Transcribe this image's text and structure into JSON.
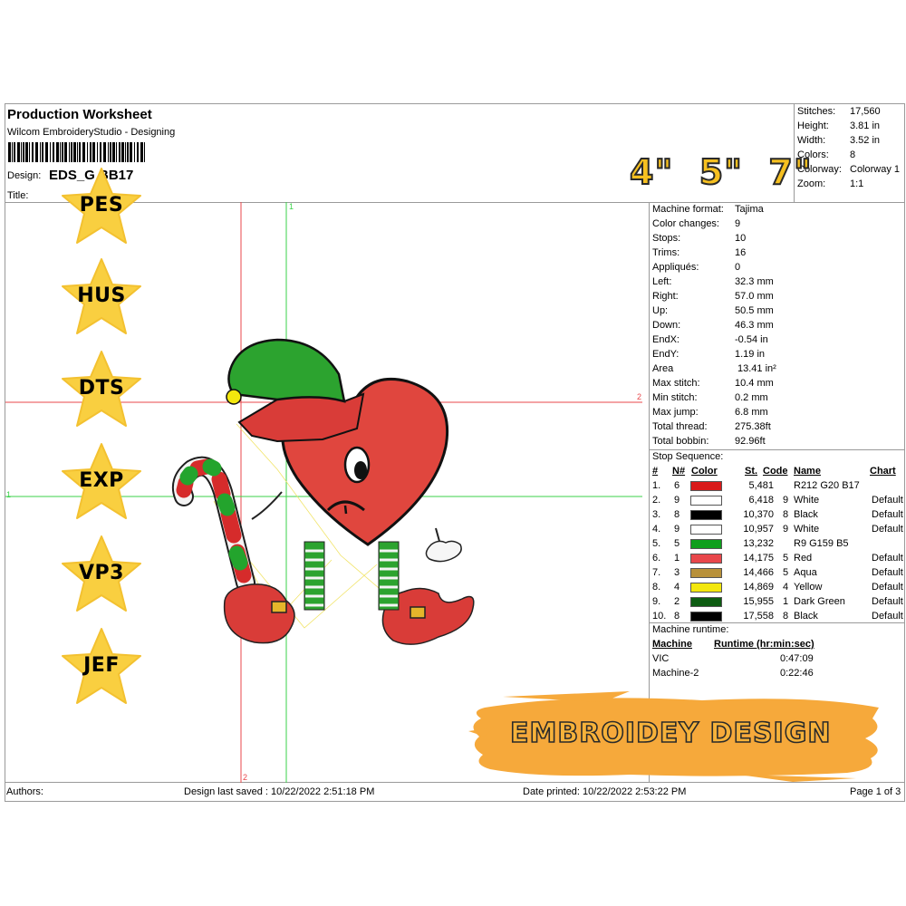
{
  "header": {
    "title": "Production Worksheet",
    "subtitle": "Wilcom EmbroideryStudio - Designing",
    "design_label": "Design:",
    "design_value": "EDS_G   BB17",
    "title_label": "Title:"
  },
  "summary": [
    {
      "label": "Stitches:",
      "value": "17,560"
    },
    {
      "label": "Height:",
      "value": "3.81 in"
    },
    {
      "label": "Width:",
      "value": "3.52 in"
    },
    {
      "label": "Colors:",
      "value": "8"
    },
    {
      "label": "Colorway:",
      "value": "Colorway 1"
    },
    {
      "label": "Zoom:",
      "value": "1:1"
    }
  ],
  "machine_info": [
    {
      "label": "Machine format:",
      "value": "Tajima"
    },
    {
      "label": "Color changes:",
      "value": "9"
    },
    {
      "label": "Stops:",
      "value": "10"
    },
    {
      "label": "Trims:",
      "value": "16"
    },
    {
      "label": "Appliqués:",
      "value": "0"
    },
    {
      "label": "Left:",
      "value": "32.3 mm"
    },
    {
      "label": "Right:",
      "value": "57.0 mm"
    },
    {
      "label": "Up:",
      "value": "50.5 mm"
    },
    {
      "label": "Down:",
      "value": "46.3 mm"
    },
    {
      "label": "EndX:",
      "value": "-0.54 in"
    },
    {
      "label": "EndY:",
      "value": "1.19 in"
    },
    {
      "label": "Area",
      "value": "13.41 in²"
    },
    {
      "label": "Max stitch:",
      "value": "10.4 mm"
    },
    {
      "label": "Min stitch:",
      "value": "0.2 mm"
    },
    {
      "label": "Max jump:",
      "value": "6.8 mm"
    },
    {
      "label": "Total thread:",
      "value": "275.38ft"
    },
    {
      "label": "Total bobbin:",
      "value": "92.96ft"
    }
  ],
  "stop_sequence": {
    "title": "Stop Sequence:",
    "headers": {
      "num": "#",
      "n": "N#",
      "color": "Color",
      "st": "St.",
      "code": "Code",
      "name": "Name",
      "chart": "Chart"
    },
    "rows": [
      {
        "num": "1.",
        "n": "6",
        "color": "#d91a1a",
        "st": "5,481",
        "code": "",
        "name": "R212 G20 B17",
        "chart": ""
      },
      {
        "num": "2.",
        "n": "9",
        "color": "#ffffff",
        "st": "6,418",
        "code": "9",
        "name": "White",
        "chart": "Default"
      },
      {
        "num": "3.",
        "n": "8",
        "color": "#000000",
        "st": "10,370",
        "code": "8",
        "name": "Black",
        "chart": "Default"
      },
      {
        "num": "4.",
        "n": "9",
        "color": "#ffffff",
        "st": "10,957",
        "code": "9",
        "name": "White",
        "chart": "Default"
      },
      {
        "num": "5.",
        "n": "5",
        "color": "#0f9f1d",
        "st": "13,232",
        "code": "",
        "name": "R9 G159 B5",
        "chart": ""
      },
      {
        "num": "6.",
        "n": "1",
        "color": "#e8474b",
        "st": "14,175",
        "code": "5",
        "name": "Red",
        "chart": "Default"
      },
      {
        "num": "7.",
        "n": "3",
        "color": "#b8913a",
        "st": "14,466",
        "code": "5",
        "name": "Aqua",
        "chart": "Default"
      },
      {
        "num": "8.",
        "n": "4",
        "color": "#f3e70d",
        "st": "14,869",
        "code": "4",
        "name": "Yellow",
        "chart": "Default"
      },
      {
        "num": "9.",
        "n": "2",
        "color": "#0d5c12",
        "st": "15,955",
        "code": "1",
        "name": "Dark Green",
        "chart": "Default"
      },
      {
        "num": "10.",
        "n": "8",
        "color": "#000000",
        "st": "17,558",
        "code": "8",
        "name": "Black",
        "chart": "Default"
      }
    ]
  },
  "runtime": {
    "title": "Machine runtime:",
    "col_machine": "Machine",
    "col_runtime": "Runtime (hr:min:sec)",
    "rows": [
      {
        "machine": "VIC",
        "time": "0:47:09"
      },
      {
        "machine": "Machine-2",
        "time": "0:22:46"
      }
    ]
  },
  "guides": {
    "v_marker": "1",
    "h_marker": "2",
    "left_marker": "1",
    "bottom_marker": "2"
  },
  "formats": [
    "PES",
    "HUS",
    "DTS",
    "EXP",
    "VP3",
    "JEF"
  ],
  "sizes_text": "4\"  5\"  7\"",
  "banner_text": "EMBROIDEY DESIGN",
  "footer": {
    "authors": "Authors:",
    "saved": "Design last saved : 10/22/2022 2:51:18 PM",
    "printed": "Date printed: 10/22/2022 2:53:22 PM",
    "page": "Page 1 of 3"
  },
  "colors": {
    "star": "#f9cf40",
    "banner": "#f6a93b",
    "guide_red": "#e8474b",
    "guide_green": "#3bd24a"
  }
}
